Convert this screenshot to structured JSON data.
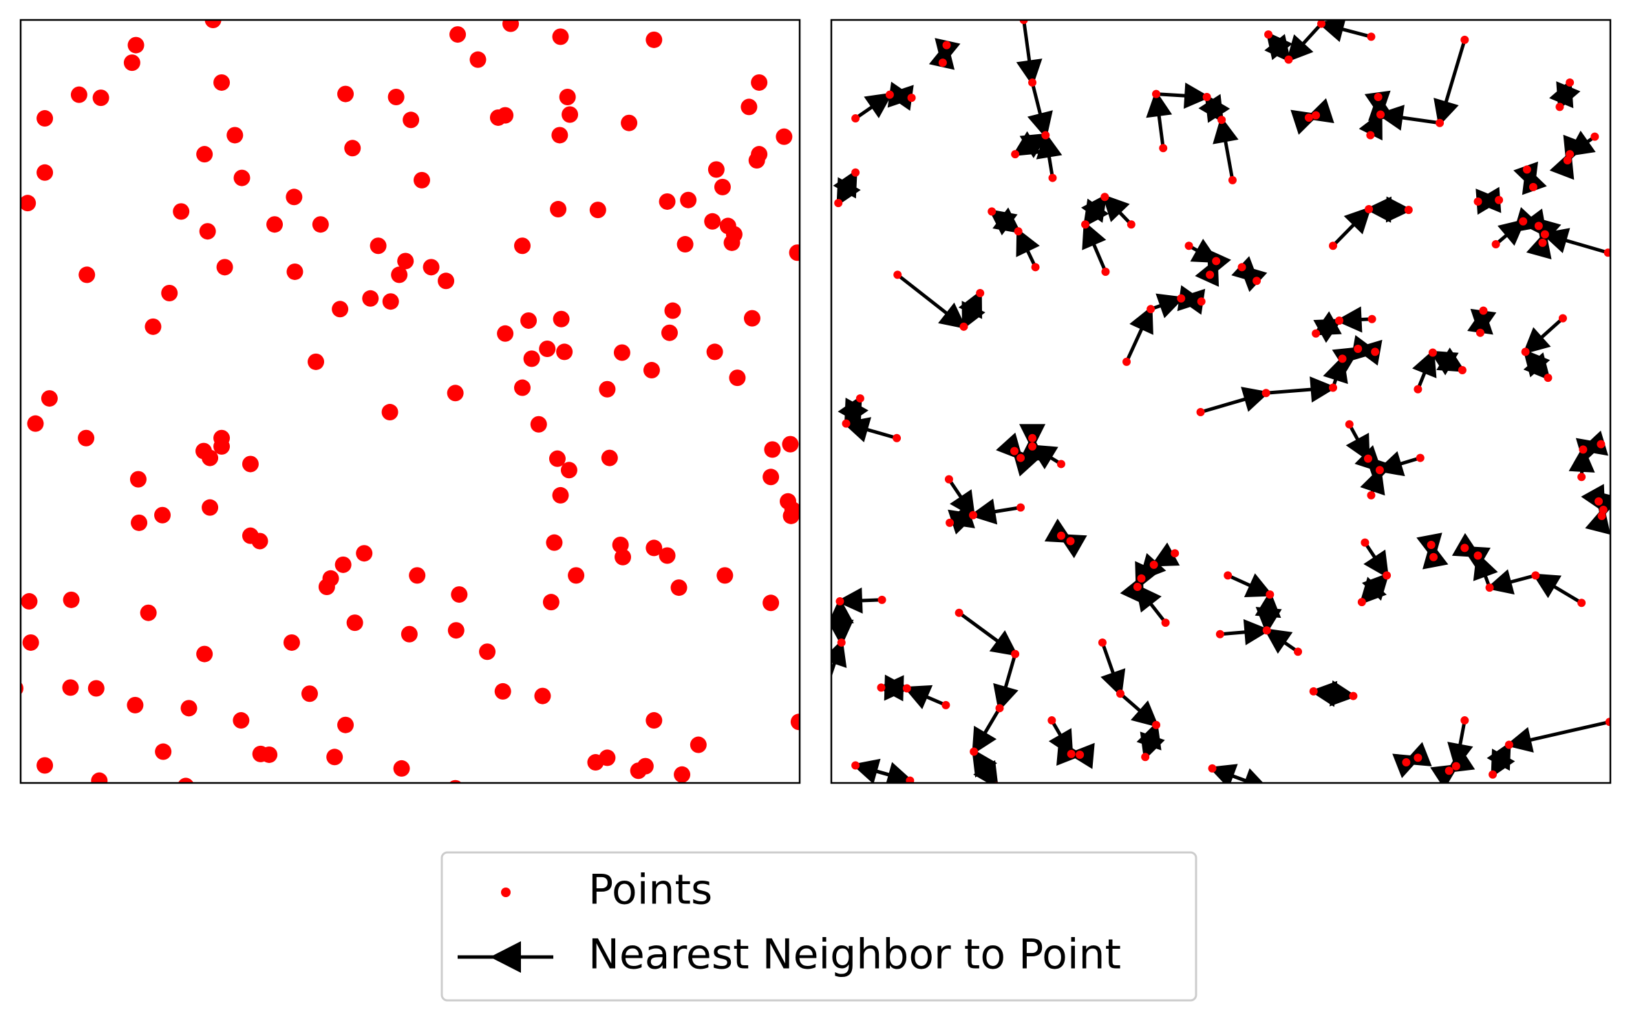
{
  "chart_data": {
    "type": "scatter",
    "xlim": [
      0,
      1
    ],
    "ylim": [
      0,
      1
    ],
    "series": [
      {
        "name": "Points",
        "color": "#ff0000",
        "x": [
          0.247,
          0.148,
          0.143,
          0.561,
          0.629,
          0.693,
          0.813,
          0.587,
          0.258,
          0.075,
          0.103,
          0.031,
          0.417,
          0.482,
          0.501,
          0.613,
          0.622,
          0.702,
          0.705,
          0.692,
          0.781,
          0.948,
          0.935,
          0.98,
          0.948,
          0.945,
          0.275,
          0.236,
          0.426,
          0.031,
          0.009,
          0.284,
          0.515,
          0.893,
          0.901,
          0.83,
          0.857,
          0.351,
          0.206,
          0.24,
          0.326,
          0.385,
          0.69,
          0.741,
          0.888,
          0.908,
          0.916,
          0.913,
          0.853,
          0.644,
          0.459,
          0.494,
          0.486,
          0.527,
          0.546,
          0.262,
          0.352,
          0.085,
          0.191,
          0.449,
          0.475,
          0.41,
          0.837,
          0.997,
          0.17,
          0.652,
          0.694,
          0.622,
          0.833,
          0.939,
          0.676,
          0.656,
          0.698,
          0.772,
          0.891,
          0.379,
          0.644,
          0.753,
          0.81,
          0.92,
          0.558,
          0.037,
          0.019,
          0.474,
          0.665,
          0.084,
          0.258,
          0.235,
          0.243,
          0.258,
          0.295,
          0.689,
          0.704,
          0.756,
          0.965,
          0.988,
          0.151,
          0.963,
          0.243,
          0.693,
          0.985,
          0.991,
          0.989,
          0.152,
          0.182,
          0.295,
          0.307,
          0.685,
          0.77,
          0.813,
          0.83,
          0.773,
          0.441,
          0.414,
          0.398,
          0.393,
          0.509,
          0.713,
          0.904,
          0.845,
          0.011,
          0.065,
          0.563,
          0.681,
          0.963,
          0.164,
          0.429,
          0.499,
          0.559,
          0.013,
          0.348,
          0.599,
          0.236,
          0.064,
          0.097,
          0.371,
          0.619,
          0.67,
          0.147,
          0.216,
          0.283,
          0.417,
          0.813,
          0.999,
          0.183,
          0.308,
          0.319,
          0.403,
          0.738,
          0.753,
          0.87,
          0.031,
          0.489,
          0.793,
          0.802,
          0.849,
          0.101,
          0.212,
          0.558,
          -0.007
        ],
        "y": [
          1.0,
          0.967,
          0.944,
          0.981,
          0.995,
          0.978,
          0.974,
          0.948,
          0.918,
          0.902,
          0.898,
          0.871,
          0.903,
          0.899,
          0.869,
          0.872,
          0.875,
          0.899,
          0.876,
          0.849,
          0.865,
          0.918,
          0.886,
          0.847,
          0.824,
          0.816,
          0.849,
          0.824,
          0.832,
          0.8,
          0.76,
          0.793,
          0.79,
          0.804,
          0.781,
          0.762,
          0.764,
          0.768,
          0.749,
          0.723,
          0.732,
          0.732,
          0.752,
          0.751,
          0.736,
          0.73,
          0.719,
          0.708,
          0.706,
          0.704,
          0.704,
          0.684,
          0.666,
          0.676,
          0.658,
          0.676,
          0.67,
          0.666,
          0.642,
          0.635,
          0.631,
          0.621,
          0.619,
          0.695,
          0.598,
          0.606,
          0.608,
          0.589,
          0.59,
          0.609,
          0.569,
          0.556,
          0.565,
          0.564,
          0.565,
          0.552,
          0.518,
          0.516,
          0.541,
          0.531,
          0.511,
          0.504,
          0.471,
          0.486,
          0.47,
          0.452,
          0.452,
          0.435,
          0.426,
          0.441,
          0.418,
          0.425,
          0.41,
          0.426,
          0.437,
          0.444,
          0.398,
          0.401,
          0.361,
          0.377,
          0.369,
          0.358,
          0.35,
          0.341,
          0.351,
          0.324,
          0.317,
          0.315,
          0.312,
          0.308,
          0.298,
          0.296,
          0.301,
          0.286,
          0.268,
          0.257,
          0.272,
          0.272,
          0.272,
          0.256,
          0.238,
          0.24,
          0.247,
          0.237,
          0.236,
          0.223,
          0.21,
          0.195,
          0.2,
          0.184,
          0.184,
          0.172,
          0.169,
          0.125,
          0.124,
          0.117,
          0.12,
          0.114,
          0.102,
          0.098,
          0.082,
          0.076,
          0.082,
          0.08,
          0.041,
          0.038,
          0.037,
          0.034,
          0.027,
          0.033,
          0.05,
          0.023,
          0.019,
          0.016,
          0.022,
          0.011,
          0.003,
          -0.004,
          -0.007,
          0.124
        ]
      },
      {
        "name": "Nearest Neighbor to Point",
        "color": "#000000"
      }
    ]
  }
}
